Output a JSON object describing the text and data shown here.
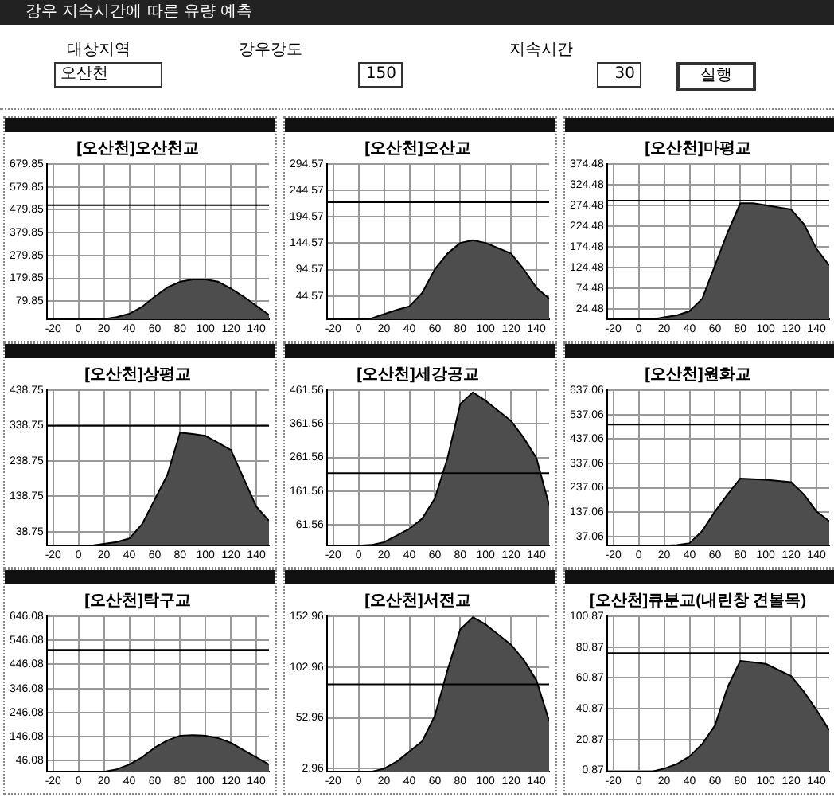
{
  "chart_data": [
    {
      "type": "other",
      "title": "강우 지속시간에 따른 유량 예측",
      "annotations": [
        "대상지역",
        "오산천",
        "강우강도",
        "150",
        "지속시간",
        "30",
        "실행"
      ]
    },
    {
      "type": "area",
      "title": "[오산천]오산천교",
      "x": [
        -20,
        -10,
        0,
        10,
        20,
        30,
        40,
        50,
        60,
        70,
        80,
        90,
        100,
        110,
        120,
        130,
        140,
        150
      ],
      "series": [
        {
          "color": "#4d4d4d",
          "values": [
            0,
            0,
            0,
            0,
            2,
            10,
            25,
            55,
            100,
            140,
            165,
            175,
            175,
            165,
            135,
            100,
            60,
            20
          ]
        }
      ],
      "xlim": [
        -25,
        150
      ],
      "xticks": [
        -20,
        0,
        20,
        40,
        60,
        80,
        100,
        120,
        140
      ],
      "ylim": [
        0,
        679.85
      ],
      "yticks": [
        79.85,
        179.85,
        279.85,
        379.85,
        479.85,
        579.85,
        679.85
      ],
      "grid": true,
      "marker": "none",
      "ref_lines": [
        {
          "axis": "y",
          "value": 500,
          "color": "#000000"
        }
      ]
    },
    {
      "type": "area",
      "title": "[오산천]오산교",
      "x": [
        -20,
        -10,
        0,
        10,
        20,
        30,
        40,
        50,
        60,
        70,
        80,
        90,
        100,
        110,
        120,
        130,
        140,
        150
      ],
      "series": [
        {
          "color": "#4d4d4d",
          "values": [
            0,
            0,
            0,
            2,
            10,
            18,
            25,
            50,
            95,
            125,
            145,
            150,
            145,
            135,
            125,
            95,
            60,
            40
          ]
        }
      ],
      "xlim": [
        -25,
        150
      ],
      "xticks": [
        -20,
        0,
        20,
        40,
        60,
        80,
        100,
        120,
        140
      ],
      "ylim": [
        0,
        294.57
      ],
      "yticks": [
        44.57,
        94.57,
        144.57,
        194.57,
        244.57,
        294.57
      ],
      "grid": true,
      "marker": "none",
      "ref_lines": [
        {
          "axis": "y",
          "value": 222,
          "color": "#000000"
        }
      ]
    },
    {
      "type": "area",
      "title": "[오산천]마평교",
      "x": [
        -20,
        -10,
        0,
        10,
        20,
        30,
        40,
        50,
        60,
        70,
        80,
        90,
        100,
        110,
        120,
        130,
        140,
        150
      ],
      "series": [
        {
          "color": "#4d4d4d",
          "values": [
            0,
            0,
            0,
            0,
            5,
            10,
            20,
            50,
            130,
            210,
            280,
            280,
            275,
            270,
            265,
            230,
            170,
            130
          ]
        }
      ],
      "xlim": [
        -25,
        150
      ],
      "xticks": [
        -20,
        0,
        20,
        40,
        60,
        80,
        100,
        120,
        140
      ],
      "ylim": [
        0,
        374.48
      ],
      "yticks": [
        24.48,
        74.48,
        124.48,
        174.48,
        224.48,
        274.48,
        324.48,
        374.48
      ],
      "grid": true,
      "marker": "none",
      "ref_lines": [
        {
          "axis": "y",
          "value": 286,
          "color": "#000000"
        }
      ]
    },
    {
      "type": "area",
      "title": "[오산천]상평교",
      "x": [
        -20,
        -10,
        0,
        10,
        20,
        30,
        40,
        50,
        60,
        70,
        80,
        90,
        100,
        110,
        120,
        130,
        140,
        150
      ],
      "series": [
        {
          "color": "#4d4d4d",
          "values": [
            0,
            0,
            0,
            0,
            5,
            10,
            20,
            60,
            130,
            200,
            319,
            315,
            310,
            290,
            270,
            190,
            110,
            70
          ]
        }
      ],
      "xlim": [
        -25,
        150
      ],
      "xticks": [
        -20,
        0,
        20,
        40,
        60,
        80,
        100,
        120,
        140
      ],
      "ylim": [
        0,
        438.75
      ],
      "yticks": [
        38.75,
        138.75,
        238.75,
        338.75,
        438.75
      ],
      "grid": true,
      "marker": "none",
      "ref_lines": [
        {
          "axis": "y",
          "value": 338,
          "color": "#000000"
        }
      ]
    },
    {
      "type": "area",
      "title": "[오산천]세강공교",
      "x": [
        -20,
        -10,
        0,
        10,
        20,
        30,
        40,
        50,
        60,
        70,
        80,
        90,
        100,
        110,
        120,
        130,
        140,
        150
      ],
      "series": [
        {
          "color": "#4d4d4d",
          "values": [
            0,
            0,
            0,
            2,
            10,
            30,
            50,
            80,
            140,
            260,
            420,
            455,
            430,
            400,
            370,
            320,
            260,
            120
          ]
        }
      ],
      "xlim": [
        -25,
        150
      ],
      "xticks": [
        -20,
        0,
        20,
        40,
        60,
        80,
        100,
        120,
        140
      ],
      "ylim": [
        0,
        461.56
      ],
      "yticks": [
        61.56,
        161.56,
        261.56,
        361.56,
        461.56
      ],
      "grid": true,
      "marker": "none",
      "ref_lines": [
        {
          "axis": "y",
          "value": 215,
          "color": "#000000"
        }
      ]
    },
    {
      "type": "area",
      "title": "[오산천]원화교",
      "x": [
        -20,
        -10,
        0,
        10,
        20,
        30,
        40,
        50,
        60,
        70,
        80,
        90,
        100,
        110,
        120,
        130,
        140,
        150
      ],
      "series": [
        {
          "color": "#4d4d4d",
          "values": [
            0,
            0,
            0,
            0,
            0,
            2,
            10,
            60,
            140,
            210,
            275,
            272,
            270,
            265,
            260,
            210,
            140,
            100
          ]
        }
      ],
      "xlim": [
        -25,
        150
      ],
      "xticks": [
        -20,
        0,
        20,
        40,
        60,
        80,
        100,
        120,
        140
      ],
      "ylim": [
        0,
        637.06
      ],
      "yticks": [
        37.06,
        137.06,
        237.06,
        337.06,
        437.06,
        537.06,
        637.06
      ],
      "grid": true,
      "marker": "none",
      "ref_lines": [
        {
          "axis": "y",
          "value": 496,
          "color": "#000000"
        }
      ]
    },
    {
      "type": "area",
      "title": "[오산천]탁구교",
      "x": [
        -20,
        -10,
        0,
        10,
        20,
        30,
        40,
        50,
        60,
        70,
        80,
        90,
        100,
        110,
        120,
        130,
        140,
        150
      ],
      "series": [
        {
          "color": "#4d4d4d",
          "values": [
            0,
            0,
            0,
            0,
            0,
            10,
            30,
            60,
            100,
            130,
            150,
            152,
            150,
            140,
            120,
            90,
            60,
            30
          ]
        }
      ],
      "xlim": [
        -25,
        150
      ],
      "xticks": [
        -20,
        0,
        20,
        40,
        60,
        80,
        100,
        120,
        140
      ],
      "ylim": [
        0,
        646.08
      ],
      "yticks": [
        46.08,
        146.08,
        246.08,
        346.08,
        446.08,
        546.08,
        646.08
      ],
      "grid": true,
      "marker": "none",
      "ref_lines": [
        {
          "axis": "y",
          "value": 506,
          "color": "#000000"
        }
      ]
    },
    {
      "type": "area",
      "title": "[오산천]서전교",
      "x": [
        -20,
        -10,
        0,
        10,
        20,
        30,
        40,
        50,
        60,
        70,
        80,
        90,
        100,
        110,
        120,
        130,
        140,
        150
      ],
      "series": [
        {
          "color": "#4d4d4d",
          "values": [
            0,
            0,
            0,
            0,
            3,
            10,
            20,
            30,
            55,
            100,
            140,
            152,
            145,
            135,
            125,
            110,
            90,
            50
          ]
        }
      ],
      "xlim": [
        -25,
        150
      ],
      "xticks": [
        -20,
        0,
        20,
        40,
        60,
        80,
        100,
        120,
        140
      ],
      "ylim": [
        0,
        152.96
      ],
      "yticks": [
        2.96,
        52.96,
        102.96,
        152.96
      ],
      "grid": true,
      "marker": "none",
      "ref_lines": [
        {
          "axis": "y",
          "value": 86,
          "color": "#000000"
        }
      ]
    },
    {
      "type": "area",
      "title": "[오산천]큐분교(내린창 견볼목)",
      "x": [
        -20,
        -10,
        0,
        10,
        20,
        30,
        40,
        50,
        60,
        70,
        80,
        90,
        100,
        110,
        120,
        130,
        140,
        150
      ],
      "series": [
        {
          "color": "#4d4d4d",
          "values": [
            0,
            0,
            0,
            0,
            2,
            5,
            10,
            18,
            30,
            55,
            72,
            71,
            70,
            66,
            62,
            52,
            40,
            27
          ]
        }
      ],
      "xlim": [
        -25,
        150
      ],
      "xticks": [
        -20,
        0,
        20,
        40,
        60,
        80,
        100,
        120,
        140
      ],
      "ylim": [
        0,
        100.87
      ],
      "yticks": [
        0.87,
        20.87,
        40.87,
        60.87,
        80.87,
        100.87
      ],
      "grid": true,
      "marker": "none",
      "ref_lines": [
        {
          "axis": "y",
          "value": 77,
          "color": "#000000"
        }
      ]
    }
  ]
}
